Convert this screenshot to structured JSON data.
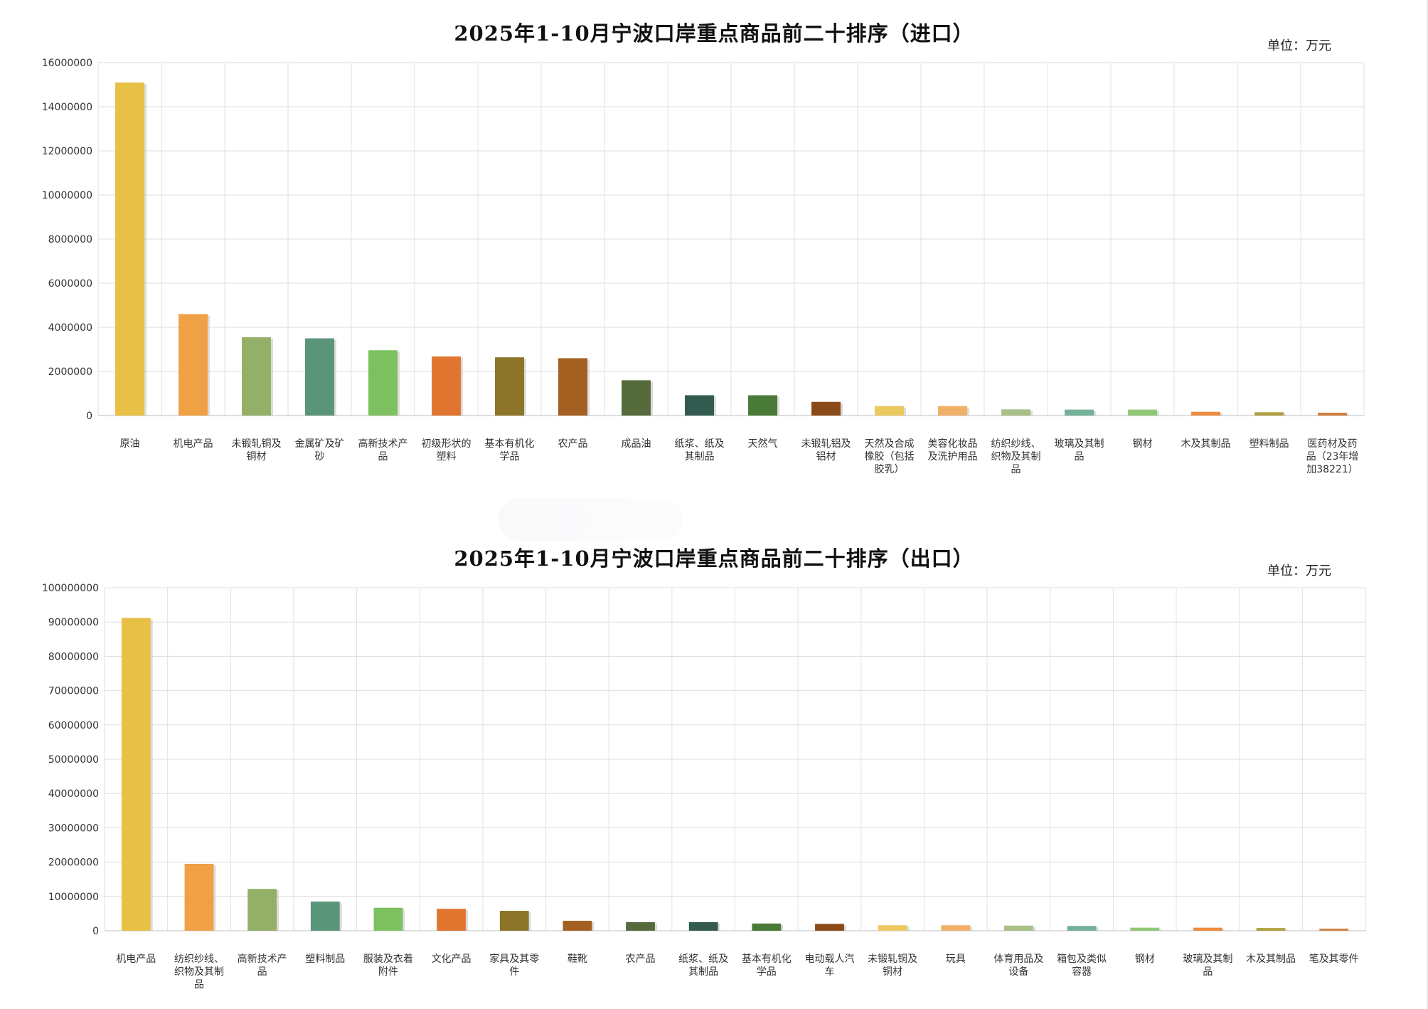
{
  "palette": [
    "#e8c045",
    "#f0a045",
    "#94b068",
    "#5a9479",
    "#7cc060",
    "#e07530",
    "#8c7428",
    "#a46020",
    "#566b3c",
    "#325a4e",
    "#4a7a38",
    "#8a4a18",
    "#ecc860",
    "#f0b068",
    "#a8c088",
    "#74b098",
    "#90c878",
    "#ec8c40",
    "#b0a040",
    "#d08040"
  ],
  "chart_data": [
    {
      "type": "bar",
      "title": "2025年1-10月宁波口岸重点商品前二十排序（进口）",
      "unit": "单位：万元",
      "ylim": [
        0,
        16000000
      ],
      "yticks": [
        0,
        2000000,
        4000000,
        6000000,
        8000000,
        10000000,
        12000000,
        14000000,
        16000000
      ],
      "ytick_labels": [
        "0",
        "2000000",
        "4000000",
        "6000000",
        "8000000",
        "10000000",
        "12000000",
        "14000000",
        "16000000"
      ],
      "grid": true,
      "categories": [
        "原油",
        "机电产品",
        "未锻轧铜及铜材",
        "金属矿及矿砂",
        "高新技术产品",
        "初级形状的塑料",
        "基本有机化学品",
        "农产品",
        "成品油",
        "纸浆、纸及其制品",
        "天然气",
        "未锻轧铝及铝材",
        "天然及合成橡胶（包括胶乳）",
        "美容化妆品及洗护用品",
        "纺织纱线、织物及其制品",
        "玻璃及其制品",
        "钢材",
        "木及其制品",
        "塑料制品",
        "医药材及药品（23年增加38221）"
      ],
      "category_lines": [
        [
          "原油"
        ],
        [
          "机电产品"
        ],
        [
          "未锻轧铜及",
          "铜材"
        ],
        [
          "金属矿及矿",
          "砂"
        ],
        [
          "高新技术产",
          "品"
        ],
        [
          "初级形状的",
          "塑料"
        ],
        [
          "基本有机化",
          "学品"
        ],
        [
          "农产品"
        ],
        [
          "成品油"
        ],
        [
          "纸浆、纸及",
          "其制品"
        ],
        [
          "天然气"
        ],
        [
          "未锻轧铝及",
          "铝材"
        ],
        [
          "天然及合成",
          "橡胶（包括",
          "胶乳）"
        ],
        [
          "美容化妆品",
          "及洗护用品"
        ],
        [
          "纺织纱线、",
          "织物及其制",
          "品"
        ],
        [
          "玻璃及其制",
          "品"
        ],
        [
          "钢材"
        ],
        [
          "木及其制品"
        ],
        [
          "塑料制品"
        ],
        [
          "医药材及药",
          "品（23年增",
          "加38221）"
        ]
      ],
      "values": [
        15100000,
        4600000,
        3550000,
        3500000,
        2960000,
        2680000,
        2640000,
        2600000,
        1600000,
        920000,
        920000,
        620000,
        430000,
        430000,
        280000,
        270000,
        270000,
        170000,
        150000,
        130000
      ]
    },
    {
      "type": "bar",
      "title": "2025年1-10月宁波口岸重点商品前二十排序（出口）",
      "unit": "单位：万元",
      "ylim": [
        0,
        100000000
      ],
      "yticks": [
        0,
        10000000,
        20000000,
        30000000,
        40000000,
        50000000,
        60000000,
        70000000,
        80000000,
        90000000,
        100000000
      ],
      "ytick_labels": [
        "0",
        "10000000",
        "20000000",
        "30000000",
        "40000000",
        "50000000",
        "60000000",
        "70000000",
        "80000000",
        "90000000",
        "100000000"
      ],
      "grid": true,
      "categories": [
        "机电产品",
        "纺织纱线、织物及其制品",
        "高新技术产品",
        "塑料制品",
        "服装及衣着附件",
        "文化产品",
        "家具及其零件",
        "鞋靴",
        "农产品",
        "纸浆、纸及其制品",
        "基本有机化学品",
        "电动载人汽车",
        "未锻轧铜及铜材",
        "玩具",
        "体育用品及设备",
        "箱包及类似容器",
        "钢材",
        "玻璃及其制品",
        "木及其制品",
        "笔及其零件"
      ],
      "category_lines": [
        [
          "机电产品"
        ],
        [
          "纺织纱线、",
          "织物及其制",
          "品"
        ],
        [
          "高新技术产",
          "品"
        ],
        [
          "塑料制品"
        ],
        [
          "服装及衣着",
          "附件"
        ],
        [
          "文化产品"
        ],
        [
          "家具及其零",
          "件"
        ],
        [
          "鞋靴"
        ],
        [
          "农产品"
        ],
        [
          "纸浆、纸及",
          "其制品"
        ],
        [
          "基本有机化",
          "学品"
        ],
        [
          "电动载人汽",
          "车"
        ],
        [
          "未锻轧铜及",
          "铜材"
        ],
        [
          "玩具"
        ],
        [
          "体育用品及",
          "设备"
        ],
        [
          "箱包及类似",
          "容器"
        ],
        [
          "钢材"
        ],
        [
          "玻璃及其制",
          "品"
        ],
        [
          "木及其制品"
        ],
        [
          "笔及其零件"
        ]
      ],
      "values": [
        91200000,
        19500000,
        12200000,
        8500000,
        6700000,
        6400000,
        5800000,
        2900000,
        2500000,
        2500000,
        2100000,
        2000000,
        1600000,
        1600000,
        1500000,
        1400000,
        900000,
        900000,
        800000,
        600000
      ]
    }
  ]
}
